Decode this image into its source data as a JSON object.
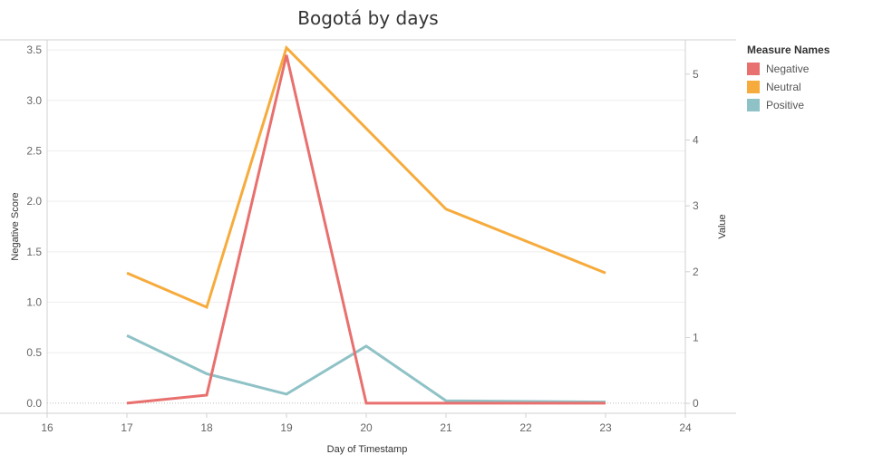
{
  "chart_data": {
    "type": "line",
    "title": "Bogotá by days",
    "xlabel": "Day of Timestamp",
    "ylabel_left": "Negative Score",
    "ylabel_right": "Value",
    "x_ticks": [
      16,
      17,
      18,
      19,
      20,
      21,
      22,
      23,
      24
    ],
    "xlim": [
      16,
      24
    ],
    "y_left_ticks": [
      "0.0",
      "0.5",
      "1.0",
      "1.5",
      "2.0",
      "2.5",
      "3.0",
      "3.5"
    ],
    "y_left_lim": [
      -0.1,
      3.6
    ],
    "y_right_ticks": [
      0,
      1,
      2,
      3,
      4,
      5
    ],
    "y_right_lim": [
      -0.15,
      5.52
    ],
    "legend_title": "Measure Names",
    "legend_placement": "right",
    "series": [
      {
        "name": "Negative",
        "color": "#e8706e",
        "axis": "left",
        "x": [
          17,
          18,
          19,
          20,
          21,
          23
        ],
        "values": [
          0.0,
          0.08,
          3.45,
          0.0,
          0.0,
          0.0
        ]
      },
      {
        "name": "Neutral",
        "color": "#f6ab3c",
        "axis": "right",
        "x": [
          17,
          18,
          19,
          21,
          23
        ],
        "values": [
          1.98,
          1.46,
          5.4,
          2.95,
          1.98
        ]
      },
      {
        "name": "Positive",
        "color": "#8fc2c6",
        "axis": "right",
        "x": [
          17,
          18,
          19,
          20,
          21,
          23
        ],
        "values": [
          1.03,
          0.45,
          0.14,
          0.87,
          0.04,
          0.02
        ]
      }
    ]
  }
}
